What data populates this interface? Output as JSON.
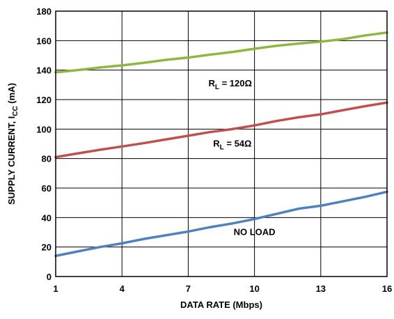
{
  "chart_data": {
    "type": "line",
    "xlabel": "DATA RATE (Mbps)",
    "ylabel": {
      "main": "SUPPLY CURRENT, I",
      "sub": "CC",
      "unit": " (mA)"
    },
    "xlim": [
      1,
      16
    ],
    "ylim": [
      0,
      180
    ],
    "xticks": [
      1,
      4,
      7,
      10,
      13,
      16
    ],
    "yticks": [
      0,
      20,
      40,
      60,
      80,
      100,
      120,
      140,
      160,
      180
    ],
    "grid": true,
    "series": [
      {
        "label_parts": {
          "pre": "R",
          "sub": "L",
          "post": " = 54Ω"
        },
        "color": "#8db83f",
        "x": [
          1,
          2,
          3,
          4,
          5,
          6,
          7,
          8,
          9,
          10,
          11,
          12,
          13,
          14,
          15,
          16
        ],
        "y": [
          138.5,
          140,
          141.8,
          143.2,
          145,
          147,
          148.5,
          150.5,
          152.3,
          154.5,
          156.5,
          158,
          159.3,
          161,
          163.5,
          165.5
        ]
      },
      {
        "label_parts": {
          "pre": "R",
          "sub": "L",
          "post": " = 120Ω"
        },
        "color": "#c0504d",
        "x": [
          1,
          2,
          3,
          4,
          5,
          6,
          7,
          8,
          9,
          10,
          11,
          12,
          13,
          14,
          15,
          16
        ],
        "y": [
          81,
          83.5,
          86,
          88.2,
          90.5,
          93,
          95.5,
          98,
          100,
          102.5,
          105.5,
          108,
          110,
          112.8,
          115.5,
          118
        ]
      },
      {
        "label_parts": {
          "pre": "NO LOAD",
          "sub": "",
          "post": ""
        },
        "color": "#4f81bd",
        "x": [
          1,
          2,
          3,
          4,
          5,
          6,
          7,
          8,
          9,
          10,
          11,
          12,
          13,
          14,
          15,
          16
        ],
        "y": [
          14,
          17,
          20,
          22.5,
          25.5,
          28,
          30.5,
          33.5,
          36,
          39,
          42.5,
          46,
          48,
          51,
          54,
          57.5
        ]
      }
    ]
  }
}
